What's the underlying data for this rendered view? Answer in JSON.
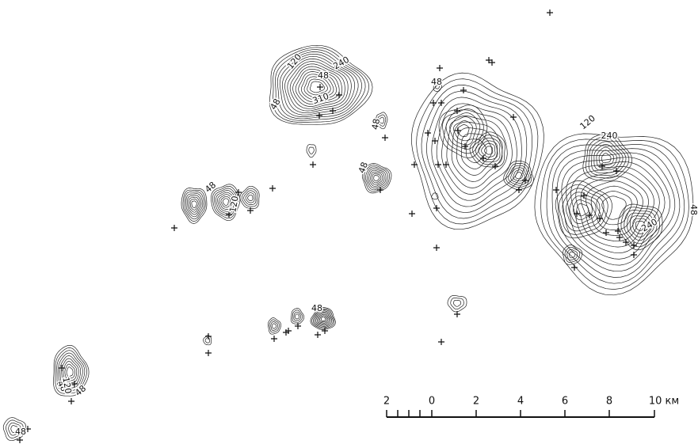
{
  "contour_labels": [
    "120",
    "240",
    "310",
    "48",
    "48",
    "48",
    "48",
    "120",
    "48",
    "48",
    "120",
    "240",
    "240",
    "48",
    "48",
    "48",
    "120",
    "48",
    "48"
  ],
  "scale_bar": {
    "labels": [
      "2",
      "0",
      "2",
      "4",
      "6",
      "8",
      "10 км"
    ]
  }
}
